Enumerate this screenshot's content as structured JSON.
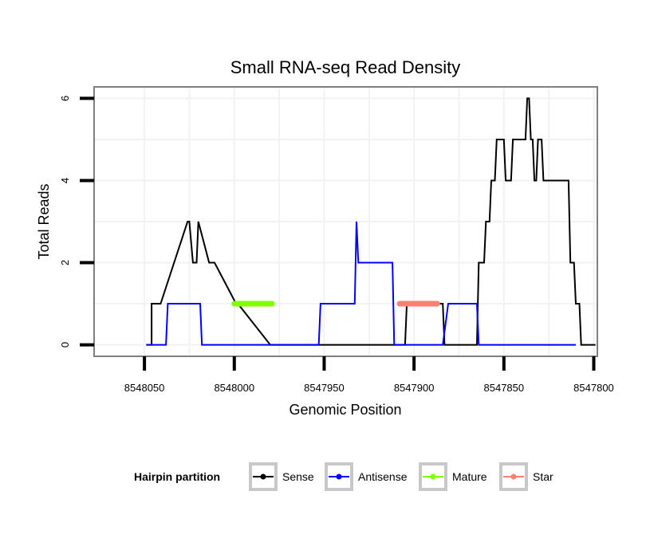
{
  "chart_data": {
    "type": "line",
    "title": "Small RNA-seq Read Density",
    "xlabel": "Genomic Position",
    "ylabel": "Total Reads",
    "xlim": [
      8548078,
      8547798
    ],
    "ylim": [
      -0.28,
      6.28
    ],
    "x_reversed": true,
    "x_ticks": [
      8548050,
      8548000,
      8547950,
      8547900,
      8547850,
      8547800
    ],
    "x_tick_labels": [
      "8548050",
      "8548000",
      "8547950",
      "8547900",
      "8547850",
      "8547800"
    ],
    "y_ticks": [
      0,
      2,
      4,
      6
    ],
    "y_tick_labels": [
      "0",
      "2",
      "4",
      "6"
    ],
    "grid": true,
    "legend": {
      "title": "Hairpin partition",
      "position": "bottom",
      "entries": [
        "Sense",
        "Antisense",
        "Mature",
        "Star"
      ]
    },
    "series": [
      {
        "name": "Sense",
        "color": "#000000",
        "x": [
          8548049,
          8548048,
          8548046,
          8548046,
          8548042,
          8548041,
          8548026,
          8548025,
          8548023,
          8548022,
          8548021,
          8548020,
          8548014,
          8548012,
          8548011,
          8547999,
          8547998,
          8547980,
          8547979,
          8547905,
          8547904,
          8547884,
          8547883,
          8547865,
          8547864,
          8547861,
          8547860,
          8547858,
          8547857,
          8547855,
          8547854,
          8547850,
          8547849,
          8547846,
          8547845,
          8547838,
          8547837,
          8547836,
          8547835,
          8547834,
          8547833,
          8547832,
          8547831,
          8547829,
          8547828,
          8547826,
          8547825,
          8547814,
          8547813,
          8547811,
          8547810,
          8547808,
          8547807,
          8547799
        ],
        "y": [
          0,
          0,
          0,
          1,
          1,
          1,
          3,
          3,
          2,
          2,
          2,
          3,
          2,
          2,
          2,
          1,
          1,
          0,
          0,
          0,
          1,
          1,
          0,
          0,
          2,
          2,
          3,
          3,
          4,
          4,
          5,
          5,
          4,
          4,
          5,
          5,
          6,
          6,
          5,
          5,
          4,
          4,
          5,
          5,
          4,
          4,
          4,
          4,
          2,
          2,
          1,
          1,
          0,
          0
        ]
      },
      {
        "name": "Antisense",
        "color": "#0000ff",
        "x": [
          8548049,
          8548038,
          8548037,
          8548019,
          8548018,
          8547953,
          8547952,
          8547933,
          8547932,
          8547931,
          8547930,
          8547912,
          8547911,
          8547908,
          8547887,
          8547886,
          8547884,
          8547881,
          8547880,
          8547865,
          8547864,
          8547810
        ],
        "y": [
          0,
          0,
          1,
          1,
          0,
          0,
          1,
          1,
          3,
          2,
          2,
          2,
          0,
          0,
          0,
          0,
          0,
          1,
          1,
          1,
          0,
          0
        ]
      },
      {
        "name": "Mature",
        "color": "#7fff00",
        "x": [
          8548000,
          8547979
        ],
        "y": [
          1,
          1
        ]
      },
      {
        "name": "Star",
        "color": "#fa8072",
        "x": [
          8547908,
          8547887
        ],
        "y": [
          1,
          1
        ]
      }
    ]
  }
}
